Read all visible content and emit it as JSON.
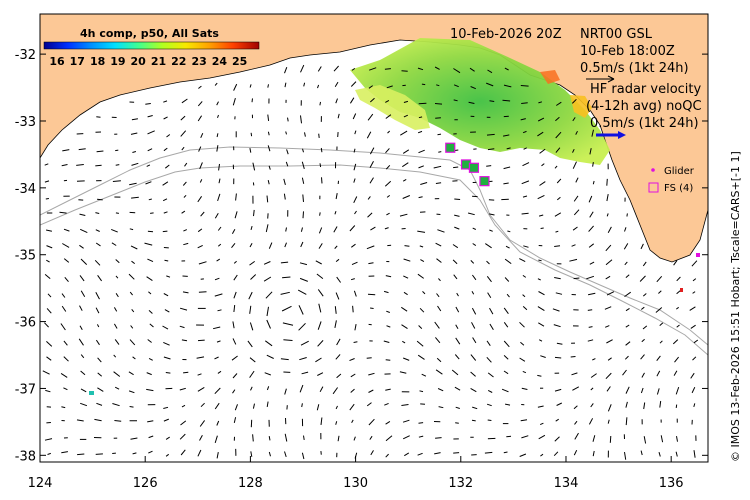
{
  "map": {
    "date_label": "10-Feb-2026 20Z",
    "colorbar": {
      "title": "4h comp, p50, All Sats",
      "ticks": [
        "16",
        "17",
        "18",
        "19",
        "20",
        "21",
        "22",
        "23",
        "24",
        "25"
      ],
      "colors": [
        "#00008f",
        "#0030ff",
        "#0090ff",
        "#00e0ff",
        "#40ff90",
        "#b0ff20",
        "#f8e800",
        "#ffa000",
        "#ff4000",
        "#a00000"
      ]
    },
    "annotations": {
      "line1": "NRT00 GSL",
      "line2": "10-Feb 18:00Z",
      "line3": "0.5m/s (1kt 24h)",
      "line4": "HF radar velocity",
      "line5": "(4-12h avg) noQC",
      "line6": "0.5m/s (1kt 24h)"
    },
    "legend": {
      "glider": "Glider",
      "fs": "FS (4)"
    },
    "credit": "© IMOS 13-Feb-2026 15:51 Hobart; Tscale=CARS+[-1 1]",
    "x_ticks": [
      "124",
      "126",
      "128",
      "130",
      "132",
      "134",
      "136"
    ],
    "y_ticks": [
      "-32",
      "-33",
      "-34",
      "-35",
      "-36",
      "-37",
      "-38"
    ],
    "colors": {
      "land": "#fcc896",
      "ocean": "#ffffff",
      "isobath": "#a8a8a8",
      "arrow": "#000000",
      "fs_marker": "#e010e0",
      "fs_fill": "#20b040"
    },
    "fs_points": [
      {
        "lon": 131.8,
        "lat": -33.4
      },
      {
        "lon": 132.1,
        "lat": -33.65
      },
      {
        "lon": 132.25,
        "lat": -33.7
      },
      {
        "lon": 132.45,
        "lat": -33.9
      }
    ]
  }
}
